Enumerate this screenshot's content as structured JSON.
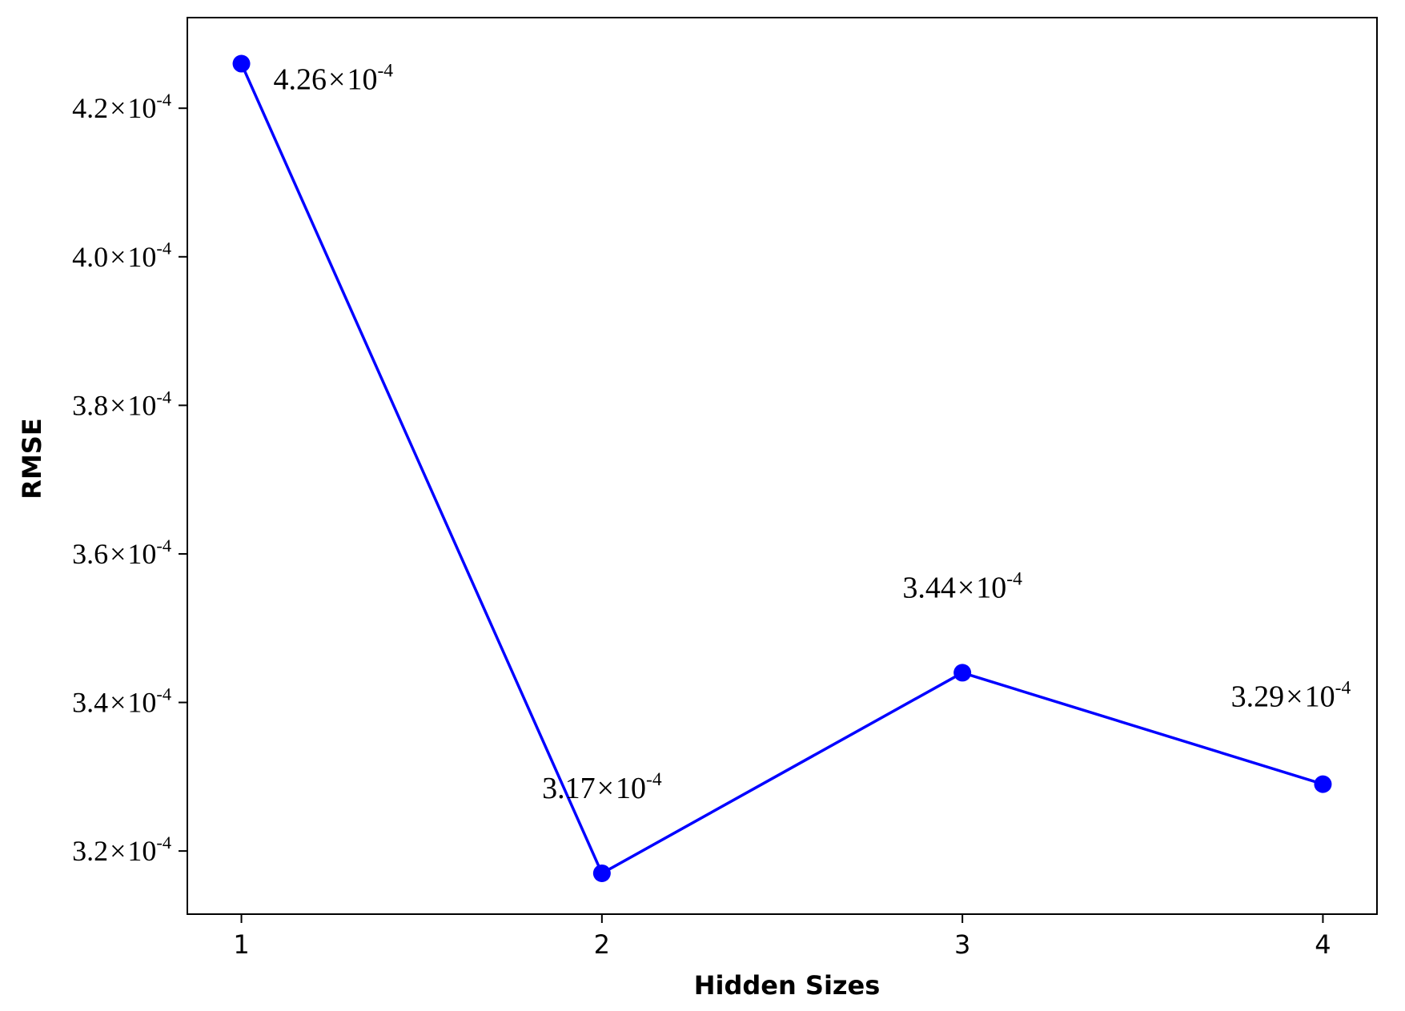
{
  "chart_data": {
    "type": "line",
    "xlabel": "Hidden Sizes",
    "ylabel": "RMSE",
    "x": [
      1,
      2,
      3,
      4
    ],
    "x_tick_labels": [
      "1",
      "2",
      "3",
      "4"
    ],
    "xlim": [
      0.85,
      4.15
    ],
    "ylim": [
      3.115,
      4.322
    ],
    "y_exponent": -4,
    "y_ticks": [
      3.2,
      3.4,
      3.6,
      3.8,
      4.0,
      4.2
    ],
    "y_tick_mantissas": [
      "3.2",
      "3.4",
      "3.6",
      "3.8",
      "4.0",
      "4.2"
    ],
    "series": [
      {
        "values": [
          4.26,
          3.17,
          3.44,
          3.29
        ],
        "color": "#0000ff",
        "marker": "circle"
      }
    ],
    "annotations": [
      {
        "x": 1,
        "y": 4.26,
        "mantissa": "4.26",
        "position": "below-right"
      },
      {
        "x": 2,
        "y": 3.17,
        "mantissa": "3.17",
        "position": "above"
      },
      {
        "x": 3,
        "y": 3.44,
        "mantissa": "3.44",
        "position": "above"
      },
      {
        "x": 4,
        "y": 3.29,
        "mantissa": "3.29",
        "position": "above-left"
      }
    ],
    "multiply_sign": "×",
    "exponent_base": "10",
    "exponent_text": "-4",
    "grid": false,
    "legend": "none"
  }
}
